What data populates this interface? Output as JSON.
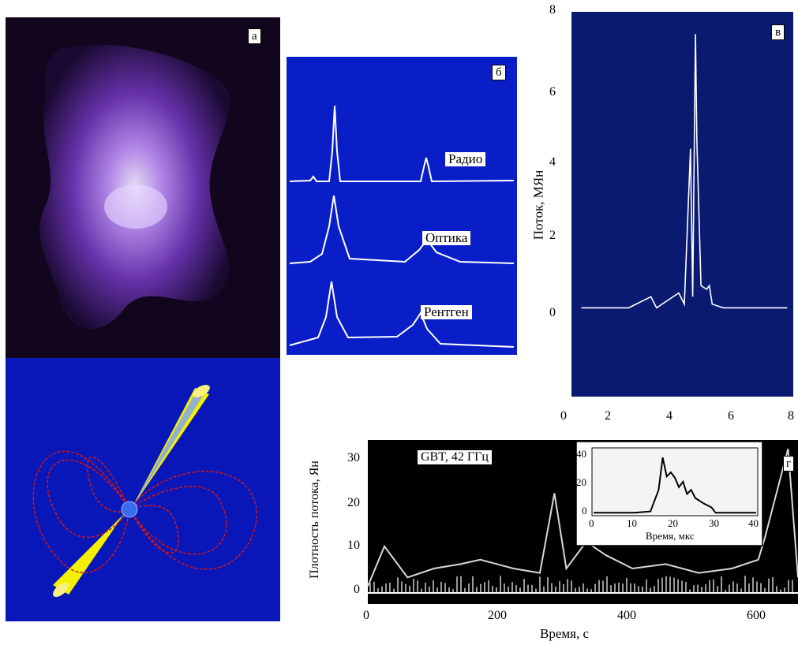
{
  "figure": {
    "panel_a": {
      "label": "а"
    },
    "panel_b": {
      "label": "б",
      "curves": [
        "Радио",
        "Оптика",
        "Рентген"
      ]
    },
    "panel_v": {
      "label": "в",
      "ylabel": "Поток, МЯн",
      "yticks": [
        "8",
        "6",
        "4",
        "2",
        "0"
      ],
      "xticks": [
        "0",
        "2",
        "4",
        "6",
        "8"
      ]
    },
    "panel_g": {
      "label": "г",
      "annotation": "GBT, 42 ГГц",
      "ylabel": "Плотность потока, Ян",
      "xlabel": "Время, с",
      "yticks": [
        "30",
        "20",
        "10",
        "0"
      ],
      "xticks": [
        "0",
        "200",
        "400",
        "600"
      ],
      "inset": {
        "xlabel": "Время, мкс",
        "yticks": [
          "40",
          "20",
          "0"
        ],
        "xticks": [
          "0",
          "10",
          "20",
          "30",
          "40"
        ]
      }
    }
  },
  "chart_data": [
    {
      "type": "line",
      "panel": "в",
      "ylabel": "Поток, МЯн",
      "xlim": [
        0,
        8
      ],
      "ylim": [
        -2.4,
        8
      ],
      "x": [
        0.3,
        2.0,
        2.8,
        3.0,
        3.4,
        3.8,
        4.0,
        4.22,
        4.3,
        4.4,
        4.45,
        4.6,
        4.8,
        4.9,
        5.0,
        5.4,
        7.7
      ],
      "y": [
        0,
        0,
        0.3,
        0,
        0.2,
        0.4,
        0.1,
        4.3,
        0.3,
        7.4,
        4.5,
        0.6,
        0.5,
        0.6,
        0.1,
        0,
        0
      ]
    },
    {
      "type": "line",
      "panel": "г",
      "ylabel": "Плотность потока, Ян",
      "xlabel": "Время, с",
      "xlim": [
        0,
        650
      ],
      "ylim": [
        -2,
        35
      ],
      "x": [
        0,
        25,
        60,
        100,
        140,
        170,
        220,
        260,
        282,
        300,
        330,
        360,
        400,
        450,
        500,
        550,
        590,
        600,
        635,
        650
      ],
      "y": [
        2,
        11,
        4,
        6,
        7,
        8,
        6,
        5,
        23,
        6,
        12,
        9,
        6,
        7,
        5,
        6,
        8,
        13,
        33,
        4
      ]
    },
    {
      "type": "line",
      "panel": "г-inset",
      "xlabel": "Время, мкс",
      "xlim": [
        0,
        40
      ],
      "ylim": [
        0,
        48
      ],
      "x": [
        0,
        10,
        14,
        16,
        17,
        18,
        19,
        20,
        21,
        22,
        23,
        24,
        25,
        27,
        29,
        30,
        32,
        40
      ],
      "y": [
        1,
        1,
        2,
        18,
        42,
        28,
        31,
        27,
        20,
        24,
        15,
        18,
        12,
        8,
        5,
        1,
        1,
        1
      ]
    }
  ]
}
